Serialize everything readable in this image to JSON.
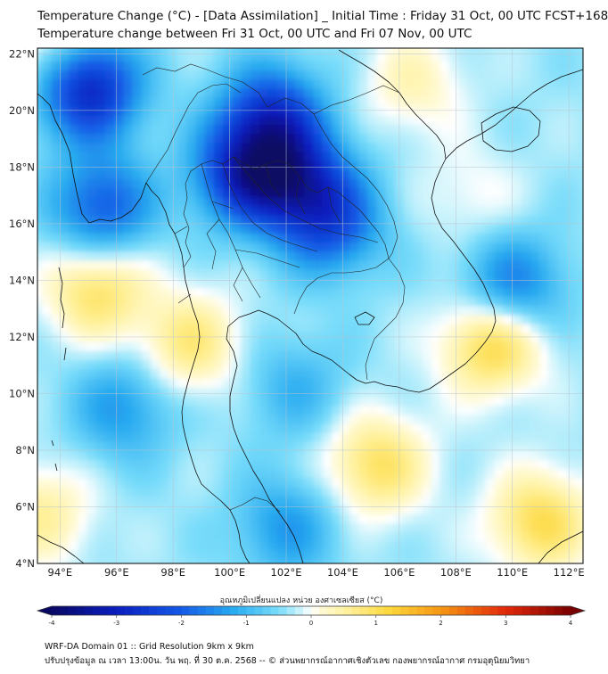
{
  "header": {
    "title_line1": "Temperature Change (°C) - [Data Assimilation] _ Initial Time : Friday 31 Oct, 00 UTC FCST+168",
    "title_line2": "Temperature change between Fri 31 Oct, 00 UTC and Fri 07 Nov, 00 UTC"
  },
  "map": {
    "lon_labels": [
      "94°E",
      "96°E",
      "98°E",
      "100°E",
      "102°E",
      "104°E",
      "106°E",
      "108°E",
      "110°E",
      "112°E"
    ],
    "lat_labels": [
      "22°N",
      "20°N",
      "18°N",
      "16°N",
      "14°N",
      "12°N",
      "10°N",
      "8°N",
      "6°N",
      "4°N"
    ],
    "lon_range": [
      93.2,
      112.5
    ],
    "lat_range": [
      4,
      22.2
    ]
  },
  "colorbar": {
    "label": "อุณหภูมิเปลี่ยนแปลง หน่วย องศาเซลเซียส (°C)",
    "range": [
      -4,
      4
    ],
    "tick_labels": [
      "-4",
      "-3",
      "-2",
      "-1",
      "0",
      "1",
      "2",
      "3",
      "4"
    ]
  },
  "footer": {
    "line1": "WRF-DA Domain 01 :: Grid Resolution 9km x 9km",
    "line2": "ปรับปรุงข้อมูล ณ เวลา 13:00น. วัน พฤ. ที่ 30 ต.ค. 2568 -- © ส่วนพยากรณ์อากาศเชิงตัวเลข กองพยากรณ์อากาศ กรมอุตุนิยมวิทยา"
  },
  "anomalies": [
    {
      "name": "north-andaman-cold",
      "lon": 95.0,
      "lat": 20.8,
      "value": -2.6
    },
    {
      "name": "northern-thailand-cold",
      "lon": 100.6,
      "lat": 17.8,
      "value": -2.4
    },
    {
      "name": "northern-laos-cold",
      "lon": 101.5,
      "lat": 19.8,
      "value": -2.1
    },
    {
      "name": "upper-laos-cold",
      "lon": 102.5,
      "lat": 17.5,
      "value": -1.9
    },
    {
      "name": "isan-cold",
      "lon": 103.6,
      "lat": 16.0,
      "value": -1.6
    },
    {
      "name": "myanmar-coast-cold",
      "lon": 95.5,
      "lat": 16.6,
      "value": -1.7
    },
    {
      "name": "south-china-sea-cold",
      "lon": 110.0,
      "lat": 13.8,
      "value": -1.4
    },
    {
      "name": "gulf-thailand-cold",
      "lon": 102.3,
      "lat": 10.2,
      "value": -0.7
    },
    {
      "name": "andaman-sea-cold",
      "lon": 96.2,
      "lat": 9.5,
      "value": -1.0
    },
    {
      "name": "malaysia-cold",
      "lon": 102.0,
      "lat": 5.3,
      "value": -1.0
    },
    {
      "name": "andaman-west-warm",
      "lon": 95.3,
      "lat": 13.7,
      "value": 1.3
    },
    {
      "name": "tanintharyi-warm",
      "lon": 98.6,
      "lat": 11.8,
      "value": 1.1
    },
    {
      "name": "vietnam-coast-warm",
      "lon": 109.3,
      "lat": 11.8,
      "value": 1.6
    },
    {
      "name": "south-sea-warm",
      "lon": 105.2,
      "lat": 7.5,
      "value": 1.3
    },
    {
      "name": "southeast-warm",
      "lon": 111.0,
      "lat": 5.5,
      "value": 1.4
    },
    {
      "name": "upper-left-warm",
      "lon": 93.5,
      "lat": 22.2,
      "value": 0.8
    },
    {
      "name": "china-warm",
      "lon": 106.5,
      "lat": 21.0,
      "value": 0.7
    },
    {
      "name": "gulf-tonkin-warm",
      "lon": 108.5,
      "lat": 17.0,
      "value": 0.4
    },
    {
      "name": "far-west-warm",
      "lon": 93.3,
      "lat": 5.8,
      "value": 0.9
    }
  ]
}
